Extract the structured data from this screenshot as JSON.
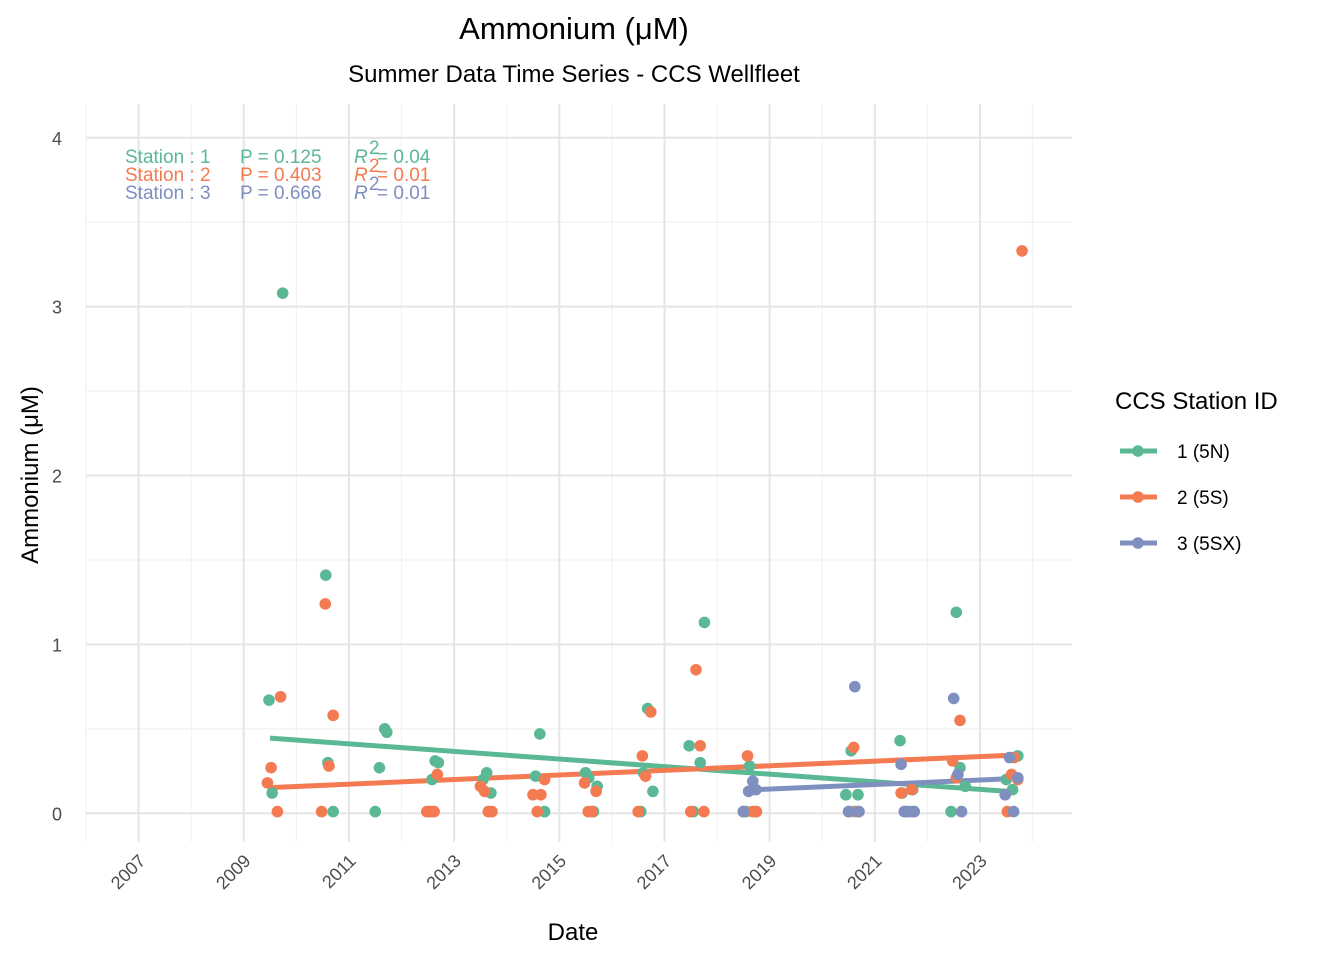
{
  "chart_data": {
    "type": "scatter",
    "title": "Ammonium (μM)",
    "subtitle": "Summer Data Time Series - CCS Wellfleet",
    "xlabel": "Date",
    "ylabel": "Ammonium (μM)",
    "x_ticks": [
      "2007",
      "2009",
      "2011",
      "2013",
      "2015",
      "2017",
      "2019",
      "2021",
      "2023"
    ],
    "y_ticks": [
      "0",
      "1",
      "2",
      "3",
      "4"
    ],
    "xlim": [
      2006.0,
      2024.75
    ],
    "ylim": [
      -0.17,
      4.2
    ],
    "grid": true,
    "legend": {
      "title": "CCS Station ID",
      "position": "right",
      "items": [
        "1 (5N)",
        "2 (5S)",
        "3 (5SX)"
      ]
    },
    "annotations": [
      {
        "station": "Station : 1",
        "p": "P = 0.125",
        "r2_label": "R",
        "r2_sup": "2",
        "r2_value": " = 0.04",
        "color": "#5bb894"
      },
      {
        "station": "Station : 2",
        "p": "P = 0.403",
        "r2_label": "R",
        "r2_sup": "2",
        "r2_value": " = 0.01",
        "color": "#f47a52"
      },
      {
        "station": "Station : 3",
        "p": "P = 0.666",
        "r2_label": "R",
        "r2_sup": "2",
        "r2_value": " = 0.01",
        "color": "#7f8fc0"
      }
    ],
    "series": [
      {
        "name": "1 (5N)",
        "color": "#5bb894",
        "trend": {
          "x": [
            2009.5,
            2023.6
          ],
          "y": [
            0.445,
            0.128
          ]
        },
        "points": [
          [
            2009.48,
            0.67
          ],
          [
            2009.54,
            0.12
          ],
          [
            2009.74,
            3.08
          ],
          [
            2010.56,
            1.41
          ],
          [
            2010.6,
            0.3
          ],
          [
            2010.7,
            0.01
          ],
          [
            2011.5,
            0.01
          ],
          [
            2011.58,
            0.27
          ],
          [
            2011.68,
            0.5
          ],
          [
            2011.72,
            0.48
          ],
          [
            2012.52,
            0.01
          ],
          [
            2012.58,
            0.2
          ],
          [
            2012.64,
            0.31
          ],
          [
            2012.7,
            0.3
          ],
          [
            2013.55,
            0.2
          ],
          [
            2013.62,
            0.24
          ],
          [
            2013.7,
            0.12
          ],
          [
            2014.55,
            0.22
          ],
          [
            2014.63,
            0.47
          ],
          [
            2014.72,
            0.01
          ],
          [
            2015.5,
            0.24
          ],
          [
            2015.56,
            0.21
          ],
          [
            2015.65,
            0.01
          ],
          [
            2015.72,
            0.16
          ],
          [
            2016.55,
            0.01
          ],
          [
            2016.6,
            0.24
          ],
          [
            2016.68,
            0.62
          ],
          [
            2016.78,
            0.13
          ],
          [
            2017.47,
            0.4
          ],
          [
            2017.55,
            0.01
          ],
          [
            2017.68,
            0.3
          ],
          [
            2017.76,
            1.13
          ],
          [
            2018.55,
            0.01
          ],
          [
            2018.62,
            0.28
          ],
          [
            2018.72,
            0.01
          ],
          [
            2020.45,
            0.11
          ],
          [
            2020.55,
            0.37
          ],
          [
            2020.62,
            0.01
          ],
          [
            2020.68,
            0.11
          ],
          [
            2021.48,
            0.43
          ],
          [
            2021.52,
            0.12
          ],
          [
            2021.6,
            0.01
          ],
          [
            2021.72,
            0.14
          ],
          [
            2022.45,
            0.01
          ],
          [
            2022.55,
            1.19
          ],
          [
            2022.62,
            0.27
          ],
          [
            2022.72,
            0.16
          ],
          [
            2023.5,
            0.2
          ],
          [
            2023.62,
            0.14
          ],
          [
            2023.72,
            0.34
          ]
        ]
      },
      {
        "name": "2 (5S)",
        "color": "#f47a52",
        "trend": {
          "x": [
            2009.5,
            2023.6
          ],
          "y": [
            0.152,
            0.344
          ]
        },
        "points": [
          [
            2009.45,
            0.18
          ],
          [
            2009.52,
            0.27
          ],
          [
            2009.64,
            0.01
          ],
          [
            2009.7,
            0.69
          ],
          [
            2010.48,
            0.01
          ],
          [
            2010.55,
            1.24
          ],
          [
            2010.62,
            0.28
          ],
          [
            2010.7,
            0.58
          ],
          [
            2012.48,
            0.01
          ],
          [
            2012.56,
            0.01
          ],
          [
            2012.62,
            0.01
          ],
          [
            2012.68,
            0.23
          ],
          [
            2013.5,
            0.16
          ],
          [
            2013.58,
            0.13
          ],
          [
            2013.65,
            0.01
          ],
          [
            2013.72,
            0.01
          ],
          [
            2014.5,
            0.11
          ],
          [
            2014.58,
            0.01
          ],
          [
            2014.65,
            0.11
          ],
          [
            2014.72,
            0.2
          ],
          [
            2015.48,
            0.18
          ],
          [
            2015.55,
            0.01
          ],
          [
            2015.62,
            0.01
          ],
          [
            2015.7,
            0.13
          ],
          [
            2016.5,
            0.01
          ],
          [
            2016.58,
            0.34
          ],
          [
            2016.64,
            0.22
          ],
          [
            2016.74,
            0.6
          ],
          [
            2017.5,
            0.01
          ],
          [
            2017.6,
            0.85
          ],
          [
            2017.68,
            0.4
          ],
          [
            2017.75,
            0.01
          ],
          [
            2018.5,
            0.01
          ],
          [
            2018.58,
            0.34
          ],
          [
            2018.68,
            0.01
          ],
          [
            2018.75,
            0.01
          ],
          [
            2020.52,
            0.01
          ],
          [
            2020.6,
            0.39
          ],
          [
            2020.68,
            0.01
          ],
          [
            2021.5,
            0.12
          ],
          [
            2021.58,
            0.01
          ],
          [
            2021.7,
            0.14
          ],
          [
            2022.48,
            0.31
          ],
          [
            2022.55,
            0.21
          ],
          [
            2022.62,
            0.55
          ],
          [
            2023.52,
            0.01
          ],
          [
            2023.6,
            0.23
          ],
          [
            2023.65,
            0.33
          ],
          [
            2023.72,
            0.2
          ],
          [
            2023.8,
            3.33
          ]
        ]
      },
      {
        "name": "3 (5SX)",
        "color": "#7f8fc0",
        "trend": {
          "x": [
            2018.6,
            2023.6
          ],
          "y": [
            0.138,
            0.205
          ]
        },
        "points": [
          [
            2018.5,
            0.01
          ],
          [
            2018.6,
            0.13
          ],
          [
            2018.68,
            0.19
          ],
          [
            2018.74,
            0.14
          ],
          [
            2020.5,
            0.01
          ],
          [
            2020.62,
            0.75
          ],
          [
            2020.7,
            0.01
          ],
          [
            2021.5,
            0.29
          ],
          [
            2021.56,
            0.01
          ],
          [
            2021.62,
            0.01
          ],
          [
            2021.7,
            0.01
          ],
          [
            2021.75,
            0.01
          ],
          [
            2022.5,
            0.68
          ],
          [
            2022.58,
            0.23
          ],
          [
            2022.65,
            0.01
          ],
          [
            2023.48,
            0.11
          ],
          [
            2023.56,
            0.33
          ],
          [
            2023.64,
            0.01
          ],
          [
            2023.72,
            0.21
          ]
        ]
      }
    ]
  }
}
